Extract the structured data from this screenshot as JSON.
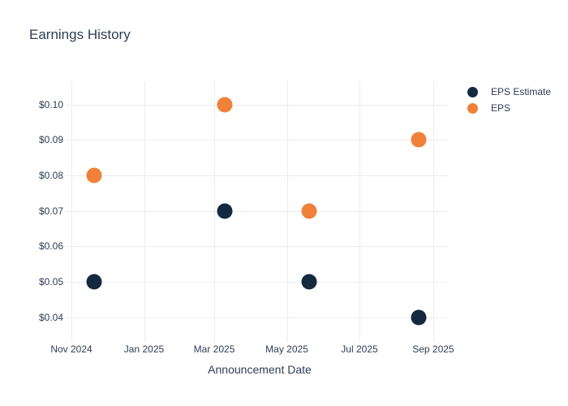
{
  "chart_data": {
    "type": "scatter",
    "title": "Earnings History",
    "xlabel": "Announcement Date",
    "ylabel": "",
    "grid": true,
    "legend_position": "outside-right-top",
    "background_color": "#ffffff",
    "gridline_color": "#e9ecf4",
    "text_color": "#2e3d54",
    "x_axis": {
      "unit": "days after Nov 1 2024 (estimated from gridline positions)",
      "range": [
        -0.7,
        317
      ],
      "ticks": [
        {
          "label": "Nov 2024",
          "x": 0
        },
        {
          "label": "Jan 2025",
          "x": 61
        },
        {
          "label": "Mar 2025",
          "x": 120
        },
        {
          "label": "May 2025",
          "x": 181
        },
        {
          "label": "Jul 2025",
          "x": 242
        },
        {
          "label": "Sep 2025",
          "x": 304
        }
      ]
    },
    "y_axis": {
      "range": [
        0.034,
        0.1066
      ],
      "ticks": [
        {
          "label": "$0.10",
          "value": 0.1
        },
        {
          "label": "$0.09",
          "value": 0.09
        },
        {
          "label": "$0.08",
          "value": 0.08
        },
        {
          "label": "$0.07",
          "value": 0.07
        },
        {
          "label": "$0.06",
          "value": 0.06
        },
        {
          "label": "$0.05",
          "value": 0.05
        },
        {
          "label": "$0.04",
          "value": 0.04
        }
      ]
    },
    "series": [
      {
        "name": "EPS Estimate",
        "color": "#142940",
        "points": [
          {
            "x": 19,
            "x_approx": "mid Nov 2024",
            "value": 0.05,
            "value_label": "$0.05"
          },
          {
            "x": 129,
            "x_approx": "early-mid Mar 2025",
            "value": 0.07,
            "value_label": "$0.07"
          },
          {
            "x": 200,
            "x_approx": "mid-late May 2025",
            "value": 0.05,
            "value_label": "$0.05"
          },
          {
            "x": 292,
            "x_approx": "late Aug 2025",
            "value": 0.04,
            "value_label": "$0.04"
          }
        ]
      },
      {
        "name": "EPS",
        "color": "#f0813a",
        "points": [
          {
            "x": 19,
            "x_approx": "mid Nov 2024",
            "value": 0.08,
            "value_label": "$0.08"
          },
          {
            "x": 129,
            "x_approx": "early-mid Mar 2025",
            "value": 0.1,
            "value_label": "$0.10"
          },
          {
            "x": 200,
            "x_approx": "mid-late May 2025",
            "value": 0.07,
            "value_label": "$0.07"
          },
          {
            "x": 292,
            "x_approx": "late Aug 2025",
            "value": 0.09,
            "value_label": "$0.09"
          }
        ]
      }
    ]
  }
}
